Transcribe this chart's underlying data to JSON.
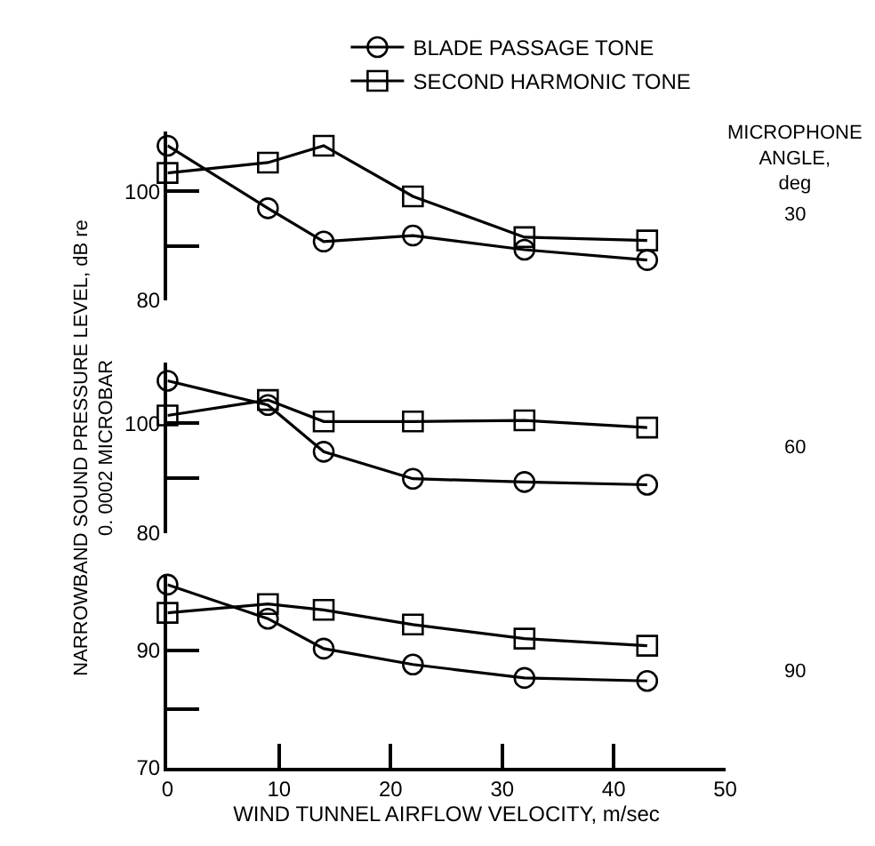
{
  "chart_data": [
    {
      "type": "line",
      "x": [
        0,
        9,
        14,
        22,
        32,
        43
      ],
      "ylim": [
        80,
        111
      ],
      "yticks": [
        80,
        100
      ],
      "xlim": [
        0,
        50
      ],
      "tick_labels": "y",
      "legend": "top",
      "line_style": "solid",
      "annotations": [
        "MICROPHONE\nANGLE,\ndeg",
        "30"
      ],
      "series": [
        {
          "name": "BLADE PASSAGE TONE",
          "color": "#000000",
          "marker": "circle",
          "values": [
            108.4,
            96.9,
            90.8,
            91.9,
            89.3,
            87.4
          ]
        },
        {
          "name": "SECOND HARMONIC TONE",
          "color": "#000000",
          "marker": "square",
          "values": [
            103.4,
            105.3,
            108.4,
            99.1,
            91.6,
            91.0
          ]
        }
      ]
    },
    {
      "type": "line",
      "x": [
        0,
        9,
        14,
        22,
        32,
        43
      ],
      "ylim": [
        80,
        111
      ],
      "yticks": [
        80,
        100
      ],
      "xlim": [
        0,
        50
      ],
      "tick_labels": "y",
      "line_style": "solid",
      "ylabel": "NARROWBAND SOUND PRESSURE LEVEL, dB re\n0. 0002 MICROBAR",
      "annotations": [
        "60"
      ],
      "series": [
        {
          "color": "#000000",
          "marker": "circle",
          "values": [
            107.7,
            103.3,
            94.8,
            89.9,
            89.3,
            88.8
          ]
        },
        {
          "color": "#000000",
          "marker": "square",
          "values": [
            101.4,
            104.2,
            100.3,
            100.3,
            100.5,
            99.2
          ]
        }
      ]
    },
    {
      "type": "line",
      "x": [
        0,
        9,
        14,
        22,
        32,
        43
      ],
      "ylim": [
        70,
        103
      ],
      "yticks": [
        70,
        90
      ],
      "xlim": [
        0,
        50
      ],
      "xticks": [
        0,
        10,
        20,
        30,
        40,
        50
      ],
      "line_style": "solid",
      "xlabel": "WIND TUNNEL AIRFLOW VELOCITY, m/sec",
      "annotations": [
        "90"
      ],
      "series": [
        {
          "color": "#000000",
          "marker": "circle",
          "values": [
            101.2,
            95.4,
            90.3,
            87.6,
            85.3,
            84.8
          ]
        },
        {
          "color": "#000000",
          "marker": "square",
          "values": [
            96.4,
            97.9,
            96.9,
            94.4,
            92.0,
            90.8
          ]
        }
      ]
    }
  ]
}
